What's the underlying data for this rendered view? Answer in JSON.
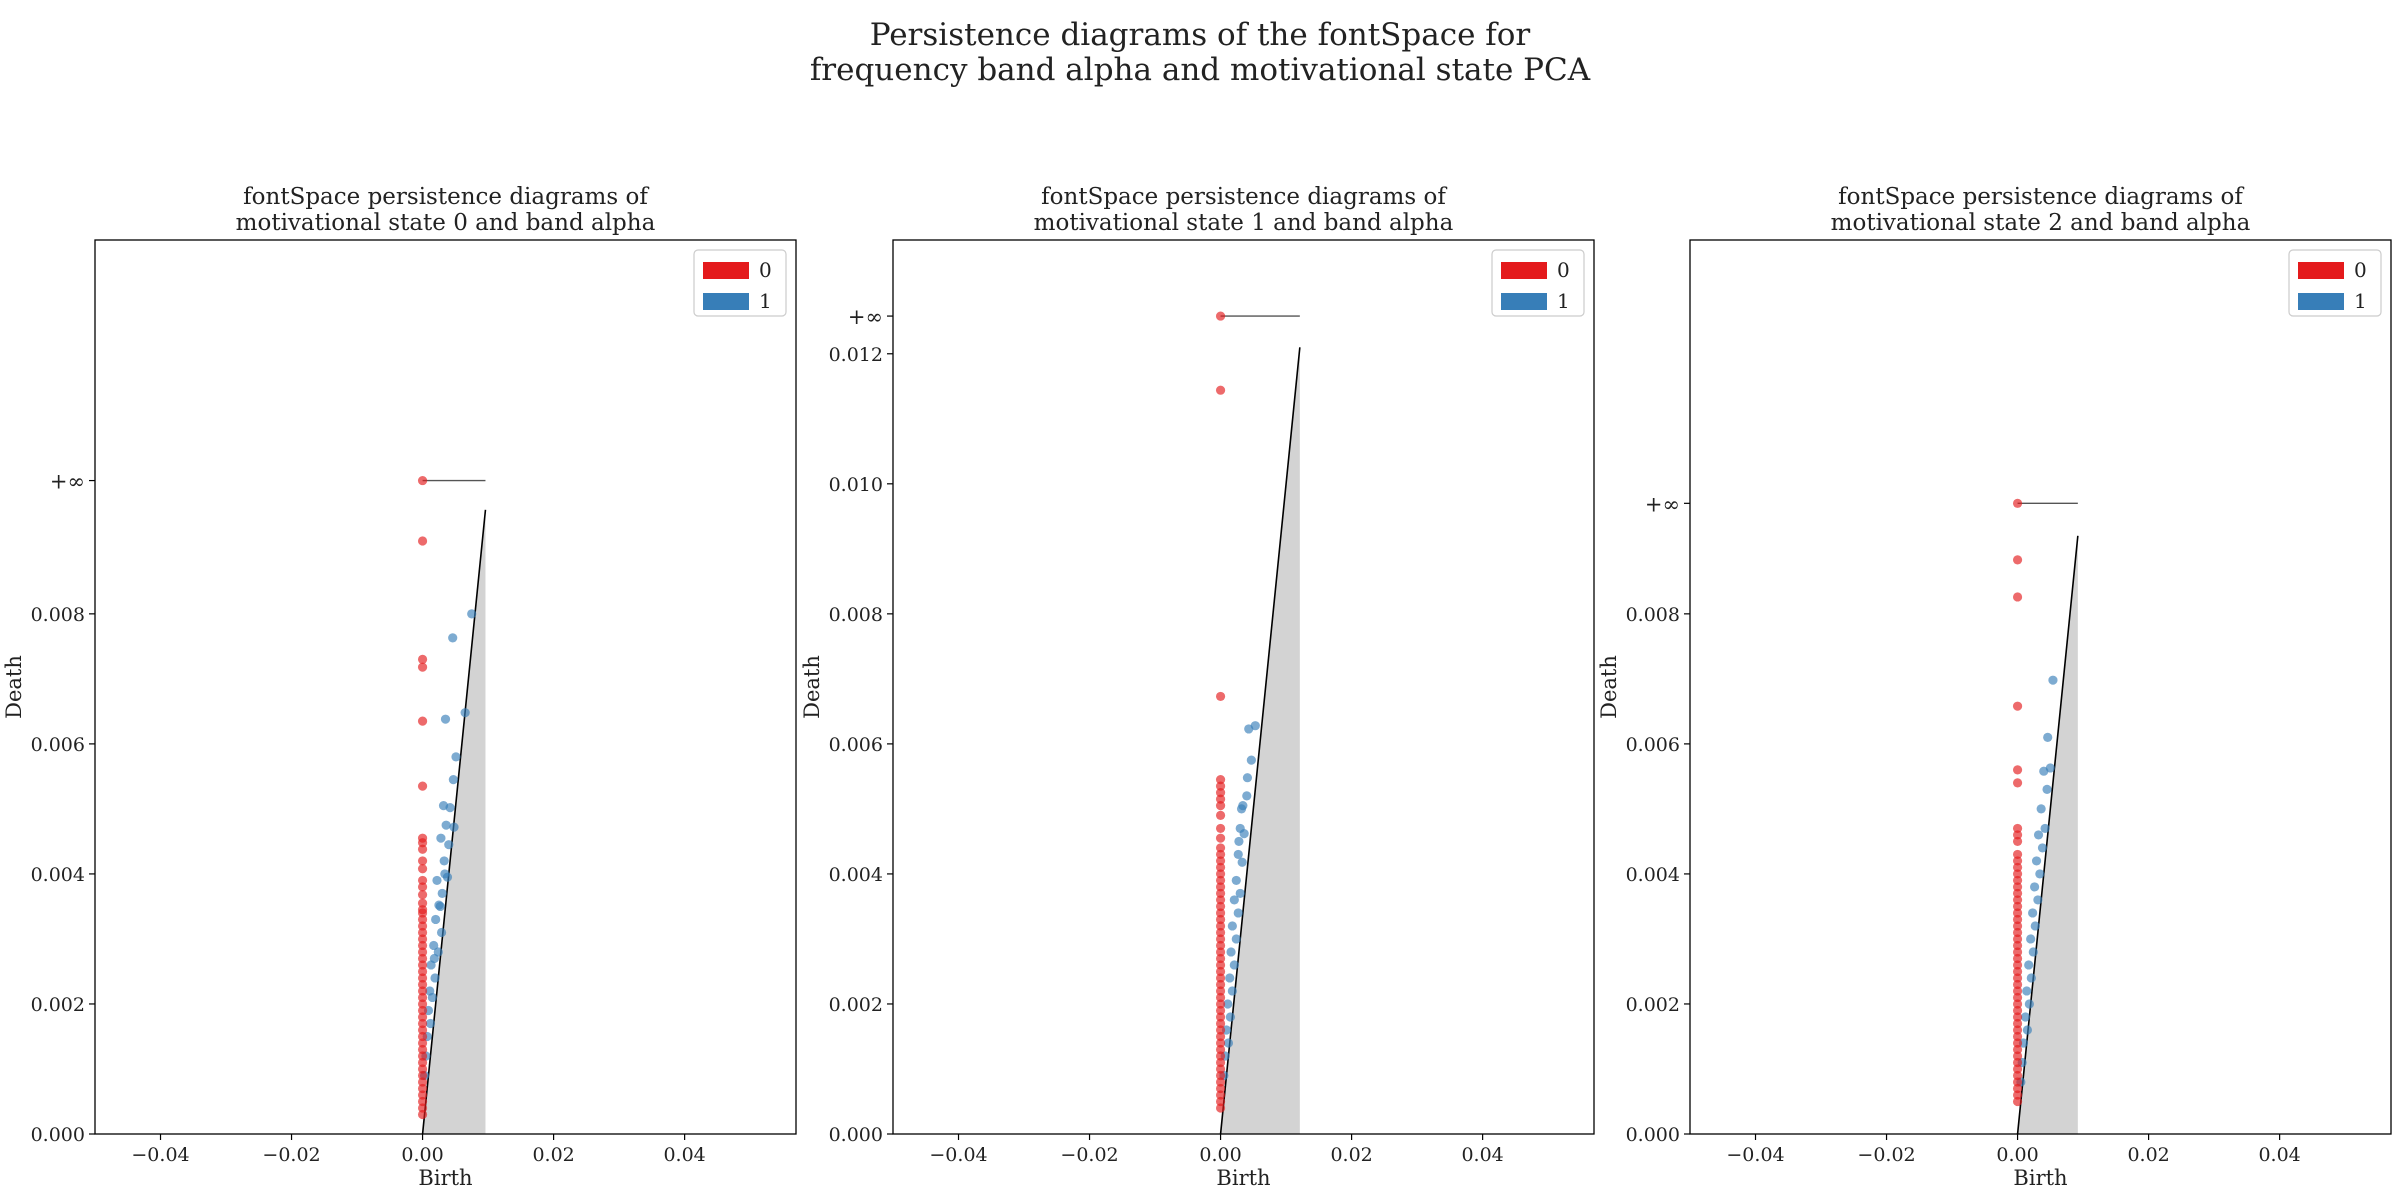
{
  "figure": {
    "suptitle_line1": "Persistence diagrams of the fontSpace for",
    "suptitle_line2": "frequency band alpha and motivational state PCA"
  },
  "colors": {
    "h0": "#e41a1c",
    "h1": "#377eb8",
    "diagonal_fill": "#d3d3d3",
    "axes": "#000000"
  },
  "chart_data": [
    {
      "type": "scatter",
      "title": [
        "fontSpace persistence diagrams of",
        "motivational state 0 and band alpha"
      ],
      "xlabel": "Birth",
      "ylabel": "Death",
      "xlim": [
        -0.05,
        0.057
      ],
      "ylim": [
        0,
        0.01375
      ],
      "xticks": [
        -0.04,
        -0.02,
        0.0,
        0.02,
        0.04
      ],
      "xticklabels": [
        "−0.04",
        "−0.02",
        "0.00",
        "0.02",
        "0.04"
      ],
      "yticks": [
        0,
        0.002,
        0.004,
        0.006,
        0.008
      ],
      "yticklabels": [
        "0.000",
        "0.002",
        "0.004",
        "0.006",
        "0.008"
      ],
      "inf_label": "+∞",
      "inf_value": 0.01005,
      "diagonal_max": 0.0096,
      "legend": {
        "position": "upper-right",
        "entries": [
          "0",
          "1"
        ]
      },
      "series": [
        {
          "name": "0",
          "color": "#e41a1c",
          "infinite_births": [
            0.0
          ],
          "deaths": [
            0.00912,
            0.0073,
            0.00718,
            0.00635,
            0.00535,
            0.00455,
            0.00448,
            0.00438,
            0.0042,
            0.00408,
            0.0039,
            0.0038,
            0.00368,
            0.00355,
            0.00345,
            0.0034,
            0.0033,
            0.0032,
            0.0031,
            0.003,
            0.0029,
            0.0028,
            0.0027,
            0.0026,
            0.0025,
            0.0024,
            0.0023,
            0.0022,
            0.0021,
            0.002,
            0.0019,
            0.0018,
            0.0017,
            0.0016,
            0.0015,
            0.0014,
            0.0013,
            0.0012,
            0.0011,
            0.001,
            0.0009,
            0.0008,
            0.0007,
            0.0006,
            0.0005,
            0.0004,
            0.0003
          ]
        },
        {
          "name": "1",
          "color": "#377eb8",
          "points": [
            [
              0.0075,
              0.008
            ],
            [
              0.0046,
              0.00763
            ],
            [
              0.0065,
              0.00648
            ],
            [
              0.0035,
              0.00638
            ],
            [
              0.0051,
              0.0058
            ],
            [
              0.0047,
              0.00545
            ],
            [
              0.0032,
              0.00505
            ],
            [
              0.0042,
              0.00502
            ],
            [
              0.0036,
              0.00475
            ],
            [
              0.0048,
              0.00472
            ],
            [
              0.0028,
              0.00455
            ],
            [
              0.004,
              0.00445
            ],
            [
              0.0033,
              0.0042
            ],
            [
              0.0022,
              0.0039
            ],
            [
              0.003,
              0.0037
            ],
            [
              0.0038,
              0.00395
            ],
            [
              0.0025,
              0.00352
            ],
            [
              0.002,
              0.0033
            ],
            [
              0.0029,
              0.0031
            ],
            [
              0.0017,
              0.0029
            ],
            [
              0.0024,
              0.0028
            ],
            [
              0.0013,
              0.0026
            ],
            [
              0.0019,
              0.0024
            ],
            [
              0.0011,
              0.0022
            ],
            [
              0.0015,
              0.0021
            ],
            [
              0.0009,
              0.0019
            ],
            [
              0.0012,
              0.0017
            ],
            [
              0.0007,
              0.0015
            ],
            [
              0.0005,
              0.0012
            ],
            [
              0.0003,
              0.0009
            ],
            [
              0.0027,
              0.0035
            ],
            [
              0.0034,
              0.004
            ],
            [
              0.0018,
              0.0027
            ]
          ]
        }
      ]
    },
    {
      "type": "scatter",
      "title": [
        "fontSpace persistence diagrams of",
        "motivational state 1 and band alpha"
      ],
      "xlabel": "Birth",
      "ylabel": "Death",
      "xlim": [
        -0.05,
        0.057
      ],
      "ylim": [
        0,
        0.01375
      ],
      "xticks": [
        -0.04,
        -0.02,
        0.0,
        0.02,
        0.04
      ],
      "xticklabels": [
        "−0.04",
        "−0.02",
        "0.00",
        "0.02",
        "0.04"
      ],
      "yticks": [
        0,
        0.002,
        0.004,
        0.006,
        0.008,
        0.01,
        0.012
      ],
      "yticklabels": [
        "0.000",
        "0.002",
        "0.004",
        "0.006",
        "0.008",
        "0.010",
        "0.012"
      ],
      "inf_label": "+∞",
      "inf_value": 0.01258,
      "diagonal_max": 0.0121,
      "legend": {
        "position": "upper-right",
        "entries": [
          "0",
          "1"
        ]
      },
      "series": [
        {
          "name": "0",
          "color": "#e41a1c",
          "infinite_births": [
            0.0
          ],
          "deaths": [
            0.01144,
            0.00673,
            0.00545,
            0.00535,
            0.00525,
            0.00515,
            0.00505,
            0.0049,
            0.0047,
            0.00455,
            0.0044,
            0.0043,
            0.0042,
            0.0041,
            0.004,
            0.0039,
            0.0038,
            0.0037,
            0.0036,
            0.0035,
            0.0034,
            0.0033,
            0.0032,
            0.0031,
            0.003,
            0.0029,
            0.0028,
            0.0027,
            0.0026,
            0.0025,
            0.0024,
            0.0023,
            0.0022,
            0.0021,
            0.002,
            0.0019,
            0.0018,
            0.0017,
            0.0016,
            0.0015,
            0.0014,
            0.0013,
            0.0012,
            0.0011,
            0.001,
            0.0009,
            0.0008,
            0.0007,
            0.0006,
            0.0005,
            0.0004
          ]
        },
        {
          "name": "1",
          "color": "#377eb8",
          "points": [
            [
              0.0053,
              0.00628
            ],
            [
              0.0043,
              0.00623
            ],
            [
              0.0047,
              0.00575
            ],
            [
              0.0041,
              0.00548
            ],
            [
              0.0034,
              0.00505
            ],
            [
              0.004,
              0.0052
            ],
            [
              0.003,
              0.0047
            ],
            [
              0.0036,
              0.00462
            ],
            [
              0.0027,
              0.0043
            ],
            [
              0.0033,
              0.00418
            ],
            [
              0.0024,
              0.0039
            ],
            [
              0.003,
              0.0037
            ],
            [
              0.0021,
              0.0036
            ],
            [
              0.0027,
              0.0034
            ],
            [
              0.0018,
              0.0032
            ],
            [
              0.0024,
              0.003
            ],
            [
              0.0016,
              0.0028
            ],
            [
              0.0021,
              0.0026
            ],
            [
              0.0014,
              0.0024
            ],
            [
              0.0018,
              0.0022
            ],
            [
              0.0011,
              0.002
            ],
            [
              0.0015,
              0.0018
            ],
            [
              0.0009,
              0.0016
            ],
            [
              0.0012,
              0.0014
            ],
            [
              0.0007,
              0.0012
            ],
            [
              0.0005,
              0.0009
            ],
            [
              0.0028,
              0.0045
            ],
            [
              0.0032,
              0.005
            ]
          ]
        }
      ]
    },
    {
      "type": "scatter",
      "title": [
        "fontSpace persistence diagrams of",
        "motivational state 2 and band alpha"
      ],
      "xlabel": "Birth",
      "ylabel": "Death",
      "xlim": [
        -0.05,
        0.057
      ],
      "ylim": [
        0,
        0.01375
      ],
      "xticks": [
        -0.04,
        -0.02,
        0.0,
        0.02,
        0.04
      ],
      "xticklabels": [
        "−0.04",
        "−0.02",
        "0.00",
        "0.02",
        "0.04"
      ],
      "yticks": [
        0,
        0.002,
        0.004,
        0.006,
        0.008
      ],
      "yticklabels": [
        "0.000",
        "0.002",
        "0.004",
        "0.006",
        "0.008"
      ],
      "inf_label": "+∞",
      "inf_value": 0.0097,
      "diagonal_max": 0.0092,
      "legend": {
        "position": "upper-right",
        "entries": [
          "0",
          "1"
        ]
      },
      "series": [
        {
          "name": "0",
          "color": "#e41a1c",
          "infinite_births": [
            0.0
          ],
          "deaths": [
            0.00883,
            0.00826,
            0.00658,
            0.0056,
            0.0054,
            0.0047,
            0.0046,
            0.0045,
            0.0043,
            0.0042,
            0.0041,
            0.004,
            0.0039,
            0.0038,
            0.0037,
            0.0036,
            0.0035,
            0.0034,
            0.0033,
            0.0032,
            0.0031,
            0.003,
            0.0029,
            0.0028,
            0.0027,
            0.0026,
            0.0025,
            0.0024,
            0.0023,
            0.0022,
            0.0021,
            0.002,
            0.0019,
            0.0018,
            0.0017,
            0.0016,
            0.0015,
            0.0014,
            0.0013,
            0.0012,
            0.0011,
            0.001,
            0.0009,
            0.0008,
            0.0007,
            0.0006,
            0.0005
          ]
        },
        {
          "name": "1",
          "color": "#377eb8",
          "points": [
            [
              0.0054,
              0.00698
            ],
            [
              0.0046,
              0.0061
            ],
            [
              0.005,
              0.00563
            ],
            [
              0.004,
              0.00558
            ],
            [
              0.0045,
              0.0053
            ],
            [
              0.0036,
              0.005
            ],
            [
              0.0042,
              0.0047
            ],
            [
              0.0032,
              0.0046
            ],
            [
              0.0038,
              0.0044
            ],
            [
              0.0029,
              0.0042
            ],
            [
              0.0034,
              0.004
            ],
            [
              0.0026,
              0.0038
            ],
            [
              0.0031,
              0.0036
            ],
            [
              0.0023,
              0.0034
            ],
            [
              0.0027,
              0.0032
            ],
            [
              0.002,
              0.003
            ],
            [
              0.0024,
              0.0028
            ],
            [
              0.0017,
              0.0026
            ],
            [
              0.0021,
              0.0024
            ],
            [
              0.0014,
              0.0022
            ],
            [
              0.0018,
              0.002
            ],
            [
              0.0012,
              0.0018
            ],
            [
              0.0015,
              0.0016
            ],
            [
              0.0009,
              0.0014
            ],
            [
              0.0007,
              0.0011
            ],
            [
              0.0005,
              0.0008
            ]
          ]
        }
      ]
    }
  ]
}
